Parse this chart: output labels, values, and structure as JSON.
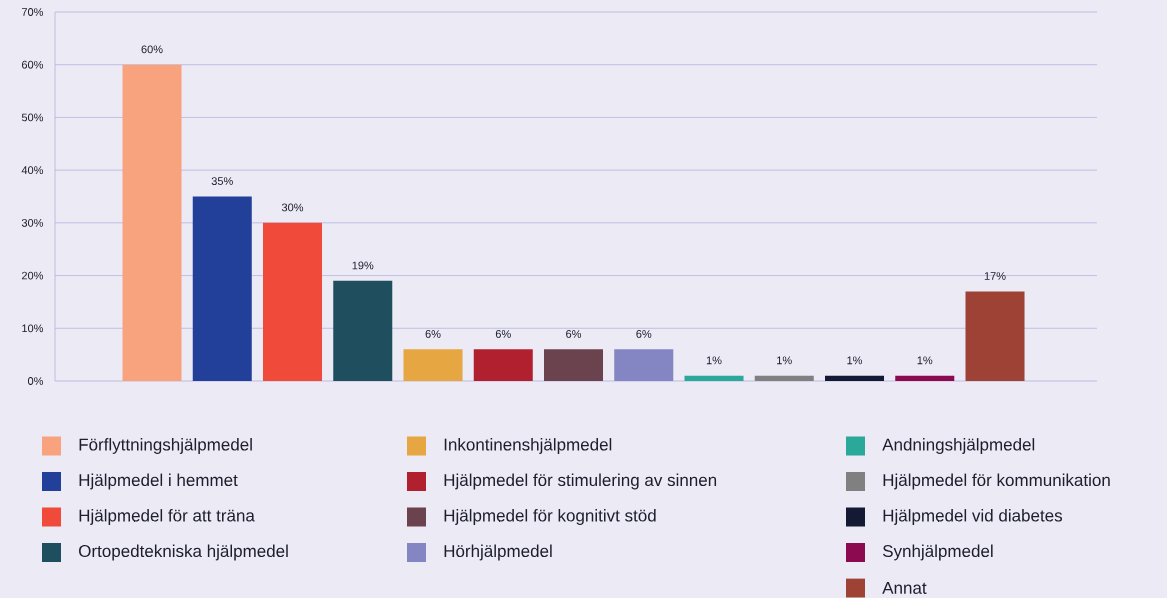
{
  "chart_data": {
    "type": "bar",
    "categories": [
      null,
      null,
      null,
      null,
      null,
      null,
      null,
      null,
      null,
      null,
      null,
      null,
      null
    ],
    "series": [
      {
        "name": "Förflyttningshjälpmedel",
        "color": "#f9a27e",
        "values": [
          60,
          null,
          null,
          null,
          null,
          null,
          null,
          null,
          null,
          null,
          null,
          null,
          null
        ],
        "value_labels": [
          "60%",
          null,
          null,
          null,
          null,
          null,
          null,
          null,
          null,
          null,
          null,
          null,
          null
        ]
      },
      {
        "name": "Hjälpmedel i hemmet",
        "color": "#22409a",
        "values": [
          null,
          35,
          null,
          null,
          null,
          null,
          null,
          null,
          null,
          null,
          null,
          null,
          null
        ],
        "value_labels": [
          null,
          "35%",
          null,
          null,
          null,
          null,
          null,
          null,
          null,
          null,
          null,
          null,
          null
        ]
      },
      {
        "name": "Hjälpmedel för att träna",
        "color": "#f04a3a",
        "values": [
          null,
          null,
          30,
          null,
          null,
          null,
          null,
          null,
          null,
          null,
          null,
          null,
          null
        ],
        "value_labels": [
          null,
          null,
          "30%",
          null,
          null,
          null,
          null,
          null,
          null,
          null,
          null,
          null,
          null
        ]
      },
      {
        "name": "Ortopedtekniska hjälpmedel",
        "color": "#1f4e5e",
        "values": [
          null,
          null,
          null,
          19,
          null,
          null,
          null,
          null,
          null,
          null,
          null,
          null,
          null
        ],
        "value_labels": [
          null,
          null,
          null,
          "19%",
          null,
          null,
          null,
          null,
          null,
          null,
          null,
          null,
          null
        ]
      },
      {
        "name": "Inkontinenshjälpmedel",
        "color": "#e6a642",
        "values": [
          null,
          null,
          null,
          null,
          6,
          null,
          null,
          null,
          null,
          null,
          null,
          null,
          null
        ],
        "value_labels": [
          null,
          null,
          null,
          null,
          "6%",
          null,
          null,
          null,
          null,
          null,
          null,
          null,
          null
        ]
      },
      {
        "name": "Hjälpmedel för stimulering av sinnen",
        "color": "#b0202e",
        "values": [
          null,
          null,
          null,
          null,
          null,
          6,
          null,
          null,
          null,
          null,
          null,
          null,
          null
        ],
        "value_labels": [
          null,
          null,
          null,
          null,
          null,
          "6%",
          null,
          null,
          null,
          null,
          null,
          null,
          null
        ]
      },
      {
        "name": "Hjälpmedel för kognitivt stöd",
        "color": "#6b434e",
        "values": [
          null,
          null,
          null,
          null,
          null,
          null,
          6,
          null,
          null,
          null,
          null,
          null,
          null
        ],
        "value_labels": [
          null,
          null,
          null,
          null,
          null,
          null,
          "6%",
          null,
          null,
          null,
          null,
          null,
          null
        ]
      },
      {
        "name": "Hörhjälpmedel",
        "color": "#8486c4",
        "values": [
          null,
          null,
          null,
          null,
          null,
          null,
          null,
          6,
          null,
          null,
          null,
          null,
          null
        ],
        "value_labels": [
          null,
          null,
          null,
          null,
          null,
          null,
          null,
          "6%",
          null,
          null,
          null,
          null,
          null
        ]
      },
      {
        "name": "Andningshjälpmedel",
        "color": "#2aa89a",
        "values": [
          null,
          null,
          null,
          null,
          null,
          null,
          null,
          null,
          1,
          null,
          null,
          null,
          null
        ],
        "value_labels": [
          null,
          null,
          null,
          null,
          null,
          null,
          null,
          null,
          "1%",
          null,
          null,
          null,
          null
        ]
      },
      {
        "name": "Hjälpmedel för kommunikation",
        "color": "#808080",
        "values": [
          null,
          null,
          null,
          null,
          null,
          null,
          null,
          null,
          null,
          1,
          null,
          null,
          null
        ],
        "value_labels": [
          null,
          null,
          null,
          null,
          null,
          null,
          null,
          null,
          null,
          "1%",
          null,
          null,
          null
        ]
      },
      {
        "name": "Hjälpmedel vid diabetes",
        "color": "#141a33",
        "values": [
          null,
          null,
          null,
          null,
          null,
          null,
          null,
          null,
          null,
          null,
          1,
          null,
          null
        ],
        "value_labels": [
          null,
          null,
          null,
          null,
          null,
          null,
          null,
          null,
          null,
          null,
          "1%",
          null,
          null
        ]
      },
      {
        "name": "Synhjälpmedel",
        "color": "#8c0a4f",
        "values": [
          null,
          null,
          null,
          null,
          null,
          null,
          null,
          null,
          null,
          null,
          null,
          1,
          null
        ],
        "value_labels": [
          null,
          null,
          null,
          null,
          null,
          null,
          null,
          null,
          null,
          null,
          null,
          "1%",
          null
        ]
      },
      {
        "name": "Annat",
        "color": "#9e4236",
        "values": [
          null,
          null,
          null,
          null,
          null,
          null,
          null,
          null,
          null,
          null,
          null,
          null,
          17
        ],
        "value_labels": [
          null,
          null,
          null,
          null,
          null,
          null,
          null,
          null,
          null,
          null,
          null,
          null,
          "17%"
        ]
      }
    ],
    "ylim": [
      0,
      70
    ],
    "yticks": [
      {
        "value": 0,
        "label": "0%"
      },
      {
        "value": 10,
        "label": "10%"
      },
      {
        "value": 20,
        "label": "20%"
      },
      {
        "value": 30,
        "label": "30%"
      },
      {
        "value": 40,
        "label": "40%"
      },
      {
        "value": 50,
        "label": "50%"
      },
      {
        "value": 60,
        "label": "60%"
      },
      {
        "value": 70,
        "label": "70%"
      }
    ],
    "grid": "y",
    "legend": "bottom",
    "stacked": true
  }
}
